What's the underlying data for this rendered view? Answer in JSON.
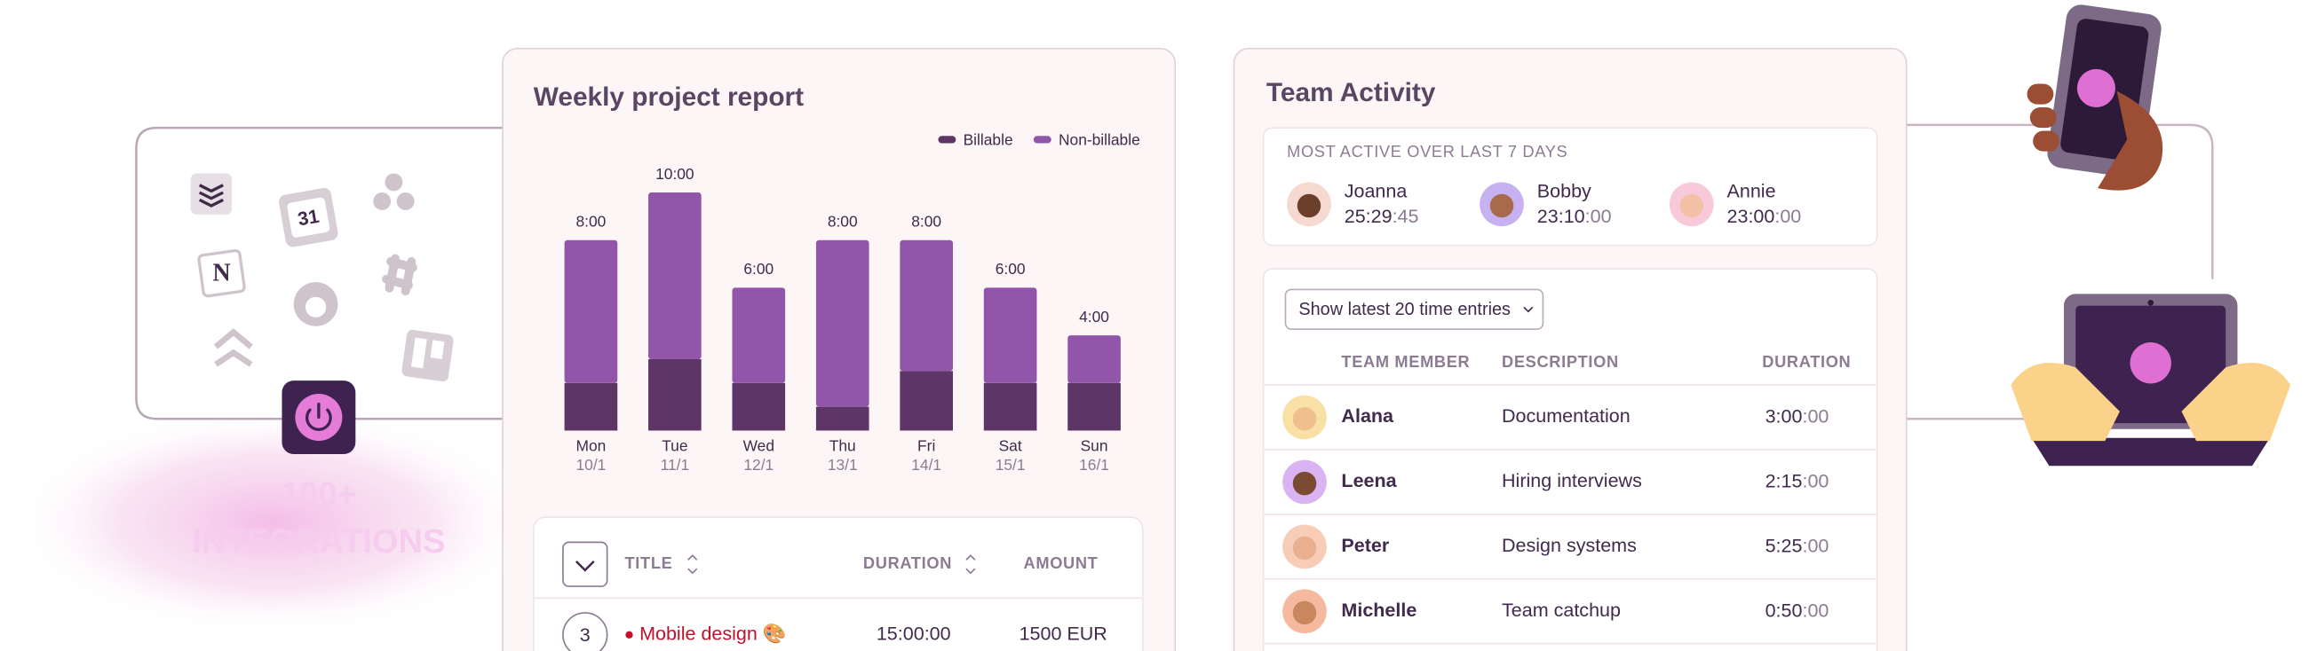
{
  "integrations": {
    "calendar_day": "31",
    "notion_letter": "N",
    "label": [
      "100+",
      "INTEGRATIONS"
    ]
  },
  "chart_data": {
    "type": "bar",
    "stacked": true,
    "title": "Weekly project report",
    "categories": [
      "Mon",
      "Tue",
      "Wed",
      "Thu",
      "Fri",
      "Sat",
      "Sun"
    ],
    "dates": [
      "10/1",
      "11/1",
      "12/1",
      "13/1",
      "14/1",
      "15/1",
      "16/1"
    ],
    "values": [
      8,
      10,
      6,
      8,
      8,
      6,
      4
    ],
    "value_labels": [
      "8:00",
      "10:00",
      "6:00",
      "8:00",
      "8:00",
      "6:00",
      "4:00"
    ],
    "series": [
      {
        "name": "Billable",
        "color": "#5d3567",
        "values": [
          2,
          3,
          2,
          1,
          2.5,
          2,
          2
        ]
      },
      {
        "name": "Non-billable",
        "color": "#9155a9",
        "values": [
          6,
          7,
          4,
          7,
          5.5,
          4,
          2
        ]
      }
    ],
    "ylim": [
      0,
      10
    ]
  },
  "entries_table": {
    "headers": [
      "TITLE",
      "DURATION",
      "AMOUNT"
    ],
    "rows": [
      {
        "count": "3",
        "title": "Mobile design 🎨",
        "duration": "15:00:00",
        "amount": "1500 EUR"
      }
    ]
  },
  "team_activity": {
    "title": "Team Activity",
    "most_active": {
      "heading": "MOST ACTIVE OVER LAST 7 DAYS",
      "people": [
        {
          "name": "Joanna",
          "time": "25:29",
          "seconds": ":45"
        },
        {
          "name": "Bobby",
          "time": "23:10",
          "seconds": ":00"
        },
        {
          "name": "Annie",
          "time": "23:00",
          "seconds": ":00"
        }
      ]
    },
    "filter": "Show latest 20 time entries",
    "headers": [
      "TEAM MEMBER",
      "DESCRIPTION",
      "DURATION"
    ],
    "rows": [
      {
        "name": "Alana",
        "description": "Documentation",
        "time": "3:00",
        "seconds": ":00"
      },
      {
        "name": "Leena",
        "description": "Hiring interviews",
        "time": "2:15",
        "seconds": ":00"
      },
      {
        "name": "Peter",
        "description": "Design systems",
        "time": "5:25",
        "seconds": ":00"
      },
      {
        "name": "Michelle",
        "description": "Team catchup",
        "time": "0:50",
        "seconds": ":00"
      }
    ]
  }
}
